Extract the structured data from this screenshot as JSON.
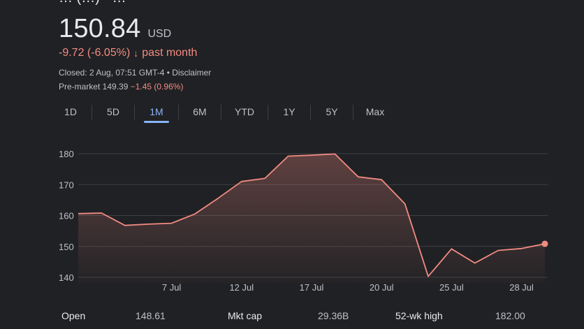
{
  "header": {
    "company_partial": "… (…) · …",
    "price": "150.84",
    "currency": "USD",
    "change_text": "-9.72 (-6.05%)",
    "change_arrow": "↓",
    "change_period": "past month",
    "closed_text": "Closed: 2 Aug, 07:51 GMT-4 • Disclaimer",
    "premarket_label": "Pre-market 149.39",
    "premarket_change": "−1.45 (0.96%)"
  },
  "tabs": [
    "1D",
    "5D",
    "1M",
    "6M",
    "YTD",
    "1Y",
    "5Y",
    "Max"
  ],
  "active_tab": "1M",
  "colors": {
    "accent": "#8ab4f8",
    "negative": "#f28b82",
    "line": "#f28b82",
    "background": "#202124"
  },
  "chart_data": {
    "type": "area",
    "title": "",
    "xlabel": "",
    "ylabel": "",
    "ylim": [
      138,
      183
    ],
    "yticks": [
      140,
      150,
      160,
      170,
      180
    ],
    "x_tick_labels": [
      "7 Jul",
      "12 Jul",
      "17 Jul",
      "20 Jul",
      "25 Jul",
      "28 Jul"
    ],
    "x_tick_indices": [
      4,
      7,
      10,
      13,
      16,
      19
    ],
    "values": [
      160.6,
      160.8,
      156.8,
      157.2,
      157.5,
      160.5,
      165.6,
      171.0,
      172.0,
      179.2,
      179.5,
      179.9,
      172.5,
      171.6,
      163.8,
      140.3,
      149.2,
      144.6,
      148.7,
      149.3,
      150.84
    ],
    "grid": true,
    "last_point_marker": true
  },
  "stats": [
    {
      "label": "Open",
      "value": "148.61"
    },
    {
      "label": "Mkt cap",
      "value": "29.36B"
    },
    {
      "label": "52-wk high",
      "value": "182.00"
    }
  ]
}
